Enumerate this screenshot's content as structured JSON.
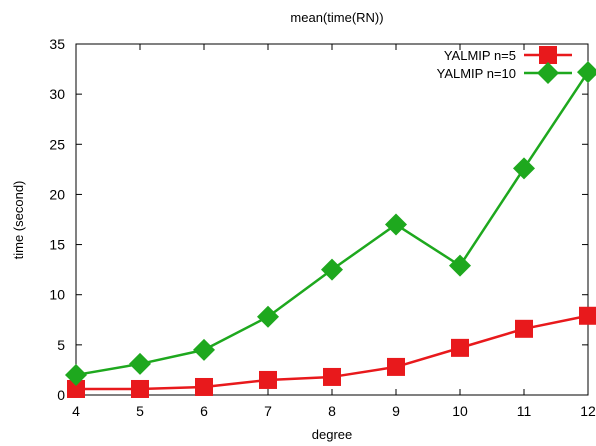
{
  "chart_data": {
    "type": "line",
    "title": "mean(time(RN))",
    "xlabel": "degree",
    "ylabel": "time (second)",
    "x": [
      4,
      5,
      6,
      7,
      8,
      9,
      10,
      11,
      12
    ],
    "xlim": [
      4,
      12
    ],
    "ylim": [
      0,
      35
    ],
    "xticks": [
      "4",
      "5",
      "6",
      "7",
      "8",
      "9",
      "10",
      "11",
      "12"
    ],
    "yticks": [
      "0",
      "5",
      "10",
      "15",
      "20",
      "25",
      "30",
      "35"
    ],
    "grid": false,
    "legend": "top-right",
    "series": [
      {
        "name": "YALMIP n=5",
        "color": "#e8191c",
        "marker": "square",
        "values": [
          0.6,
          0.6,
          0.8,
          1.5,
          1.8,
          2.8,
          4.7,
          6.6,
          7.9
        ]
      },
      {
        "name": "YALMIP n=10",
        "color": "#1ea81e",
        "marker": "diamond",
        "values": [
          2.0,
          3.1,
          4.5,
          7.8,
          12.5,
          17.0,
          12.9,
          22.6,
          32.2
        ]
      }
    ]
  }
}
